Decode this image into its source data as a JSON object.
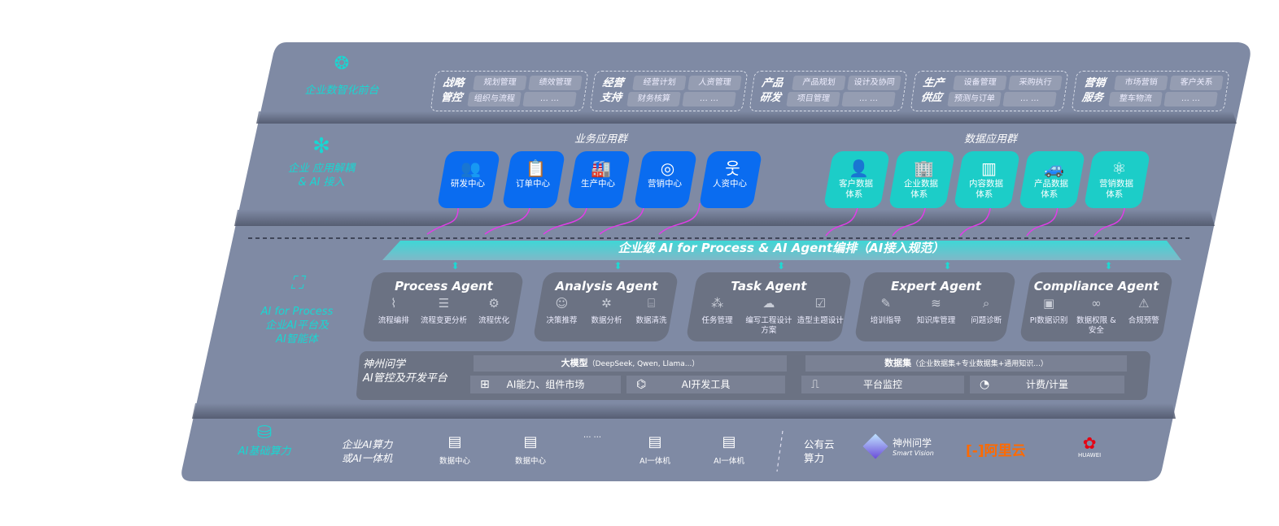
{
  "colors": {
    "panel": "#7f8aa4",
    "accent_teal": "#19d7d2",
    "business_blue": "#0a6cf0",
    "data_teal": "#1ccdc8",
    "agent_card": "#6b7283",
    "connector_magenta": "#e13ee8",
    "aliyun_orange": "#ff6a00",
    "huawei_red": "#e60012"
  },
  "layers": {
    "front": {
      "label": "企业数智化前台",
      "icon": "brain-icon"
    },
    "apps": {
      "label_line1": "企业 应用解耦",
      "label_line2": "& AI 接入",
      "icon": "molecule-node-icon"
    },
    "process": {
      "label_line1": "AI for Process",
      "label_line2": "企业AI平台及",
      "label_line3": "AI智能体",
      "icon": "face-scan-icon"
    },
    "compute": {
      "label": "AI基础算力",
      "icon": "database-icon"
    }
  },
  "groups": [
    {
      "title1": "战略",
      "title2": "管控",
      "chips": [
        "规划管理",
        "绩效管理",
        "组织与流程",
        "… …"
      ]
    },
    {
      "title1": "经营",
      "title2": "支持",
      "chips": [
        "经营计划",
        "人资管理",
        "财务核算",
        "… …"
      ]
    },
    {
      "title1": "产品",
      "title2": "研发",
      "chips": [
        "产品规划",
        "设计及协同",
        "项目管理",
        "… …"
      ]
    },
    {
      "title1": "生产",
      "title2": "供应",
      "chips": [
        "设备管理",
        "采购执行",
        "预测与订单",
        "… …"
      ]
    },
    {
      "title1": "营销",
      "title2": "服务",
      "chips": [
        "市场营销",
        "客户关系",
        "整车物流",
        "… …"
      ]
    }
  ],
  "business_apps": {
    "title": "业务应用群",
    "items": [
      {
        "label": "研发中心",
        "icon": "team-icon"
      },
      {
        "label": "订单中心",
        "icon": "clipboard-icon"
      },
      {
        "label": "生产中心",
        "icon": "factory-icon"
      },
      {
        "label": "营销中心",
        "icon": "target-icon"
      },
      {
        "label": "人资中心",
        "icon": "person-icon"
      }
    ]
  },
  "data_apps": {
    "title": "数据应用群",
    "items": [
      {
        "label1": "客户数据",
        "label2": "体系",
        "icon": "user-icon"
      },
      {
        "label1": "企业数据",
        "label2": "体系",
        "icon": "building-icon"
      },
      {
        "label1": "内容数据",
        "label2": "体系",
        "icon": "books-icon"
      },
      {
        "label1": "产品数据",
        "label2": "体系",
        "icon": "car-icon"
      },
      {
        "label1": "营销数据",
        "label2": "体系",
        "icon": "atom-icon"
      }
    ]
  },
  "banner": "企业级 AI for Process & AI Agent编排（AI接入规范）",
  "agents": [
    {
      "name": "Process Agent",
      "items": [
        {
          "label": "流程编排",
          "icon": "flow-chart-icon"
        },
        {
          "label": "流程变更分析",
          "icon": "list-icon"
        },
        {
          "label": "流程优化",
          "icon": "optimize-icon"
        }
      ]
    },
    {
      "name": "Analysis Agent",
      "items": [
        {
          "label": "决策推荐",
          "icon": "head-icon"
        },
        {
          "label": "数据分析",
          "icon": "gear-icon"
        },
        {
          "label": "数据清洗",
          "icon": "clean-icon"
        }
      ]
    },
    {
      "name": "Task Agent",
      "items": [
        {
          "label": "任务管理",
          "icon": "network-icon"
        },
        {
          "label": "编写工程设计方案",
          "icon": "cloud-icon"
        },
        {
          "label": "造型主题设计",
          "icon": "checklist-icon"
        }
      ]
    },
    {
      "name": "Expert Agent",
      "items": [
        {
          "label": "培训指导",
          "icon": "training-icon"
        },
        {
          "label": "知识库管理",
          "icon": "layers-icon"
        },
        {
          "label": "问题诊断",
          "icon": "diagnose-icon"
        }
      ]
    },
    {
      "name": "Compliance Agent",
      "items": [
        {
          "label": "PI数据识别",
          "icon": "id-card-icon"
        },
        {
          "label": "数据权限 & 安全",
          "icon": "link-icon"
        },
        {
          "label": "合规预警",
          "icon": "alert-icon"
        }
      ]
    }
  ],
  "platform": {
    "name1": "神州问学",
    "name2": "AI管控及开发平台",
    "model_title": "大模型",
    "model_note": "（DeepSeek, Qwen, Llama...）",
    "dataset_title": "数据集",
    "dataset_note": "（企业数据集+专业数据集+通用知识...）",
    "tools": [
      {
        "label": "AI能力、组件市场",
        "icon": "market-icon"
      },
      {
        "label": "AI开发工具",
        "icon": "dev-tool-icon"
      },
      {
        "label": "平台监控",
        "icon": "monitor-icon"
      },
      {
        "label": "计费/计量",
        "icon": "gauge-icon"
      }
    ]
  },
  "compute": {
    "private_line1": "企业AI算力",
    "private_line2": "或AI一体机",
    "servers": [
      {
        "label": "数据中心"
      },
      {
        "label": "数据中心"
      },
      {
        "label": "… …"
      },
      {
        "label": "AI一体机"
      },
      {
        "label": "AI一体机"
      }
    ],
    "public_line1": "公有云",
    "public_line2": "算力",
    "vendors": [
      {
        "name": "神州问学",
        "sub": "Smart Vision"
      },
      {
        "name": "阿里云"
      },
      {
        "name": "HUAWEI"
      }
    ]
  }
}
